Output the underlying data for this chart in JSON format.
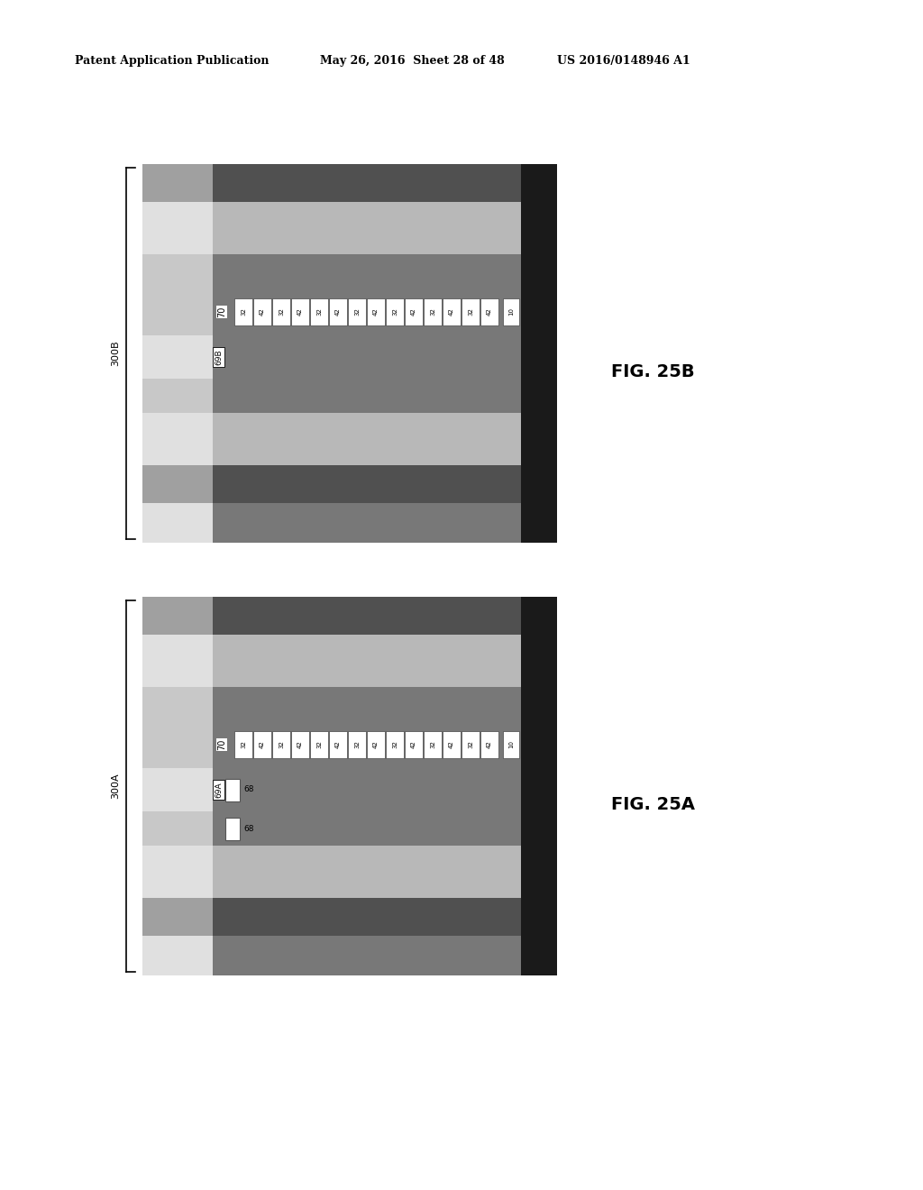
{
  "header_left": "Patent Application Publication",
  "header_mid": "May 26, 2016  Sheet 28 of 48",
  "header_right": "US 2016/0148946 A1",
  "fig_top_label": "FIG. 25B",
  "fig_bot_label": "FIG. 25A",
  "bracket_top_label": "300B",
  "bracket_bot_label": "300A",
  "background": "#ffffff",
  "layer_colors": {
    "light_gray": "#c8c8c8",
    "medium_light_gray": "#a0a0a0",
    "medium_gray": "#787878",
    "dark_gray": "#505050",
    "very_dark": "#1a1a1a",
    "white": "#ffffff",
    "near_white": "#e0e0e0",
    "light_texture": "#b8b8b8"
  }
}
